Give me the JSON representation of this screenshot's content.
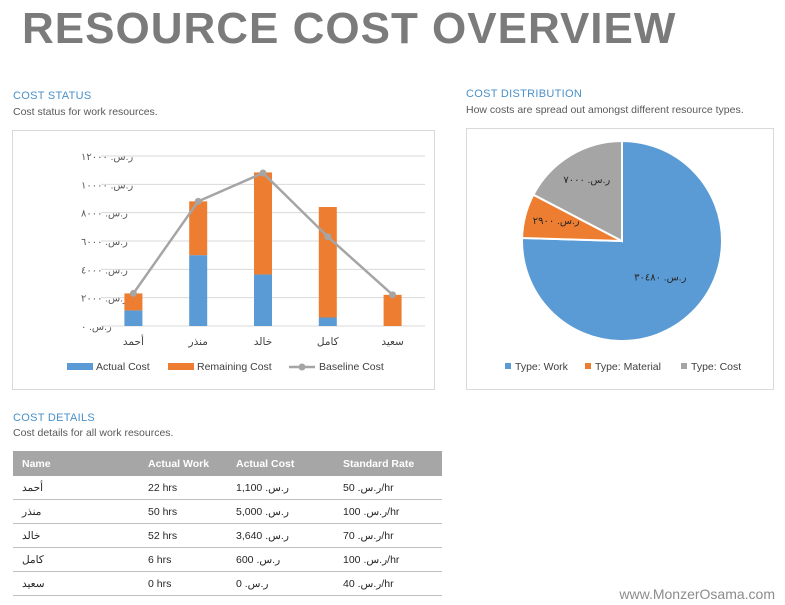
{
  "page": {
    "title": "RESOURCE COST OVERVIEW",
    "watermark": "www.MonzerOsama.com"
  },
  "colors": {
    "actual": "#5b9bd5",
    "remaining": "#ed7d31",
    "baseline": "#a5a5a5",
    "heading": "#4a90c8",
    "title": "#7b7b7b"
  },
  "cost_status": {
    "heading": "COST STATUS",
    "subtitle": "Cost status for work resources."
  },
  "cost_distribution": {
    "heading": "COST DISTRIBUTION",
    "subtitle": "How costs are spread out amongst different resource types."
  },
  "cost_details": {
    "heading": "COST DETAILS",
    "subtitle": "Cost details for all work resources.",
    "columns": [
      "Name",
      "Actual Work",
      "Actual Cost",
      "Standard Rate"
    ],
    "rows": [
      [
        "أحمد",
        "22 hrs",
        "ر.س. 1,100",
        "ر.س. 50/hr"
      ],
      [
        "منذر",
        "50 hrs",
        "ر.س. 5,000",
        "ر.س. 100/hr"
      ],
      [
        "خالد",
        "52 hrs",
        "ر.س. 3,640",
        "ر.س. 70/hr"
      ],
      [
        "كامل",
        "6 hrs",
        "ر.س. 600",
        "ر.س. 100/hr"
      ],
      [
        "سعيد",
        "0 hrs",
        "ر.س. 0",
        "ر.س. 40/hr"
      ]
    ]
  },
  "chart_data": [
    {
      "type": "bar",
      "stacked": true,
      "categories": [
        "أحمد",
        "منذر",
        "خالد",
        "كامل",
        "سعيد"
      ],
      "series": [
        {
          "name": "Actual Cost",
          "values": [
            1100,
            5000,
            3640,
            600,
            0
          ]
        },
        {
          "name": "Remaining Cost",
          "values": [
            1200,
            3800,
            7200,
            7800,
            2200
          ]
        }
      ],
      "line_series": {
        "name": "Baseline Cost",
        "values": [
          2300,
          8800,
          10800,
          6300,
          2200
        ]
      },
      "y_ticks": [
        "ر.س. ٠",
        "ر.س. ٢٠٠٠",
        "ر.س. ٤٠٠٠",
        "ر.س. ٦٠٠٠",
        "ر.س. ٨٠٠٠",
        "ر.س. ١٠٠٠٠",
        "ر.س. ١٢٠٠٠"
      ],
      "ylim": [
        0,
        12000
      ],
      "grid": true,
      "legend": "bottom"
    },
    {
      "type": "pie",
      "slices": [
        {
          "name": "Type: Work",
          "value": 30480,
          "label": "ر.س. ٣٠٤٨٠"
        },
        {
          "name": "Type: Material",
          "value": 2900,
          "label": "ر.س. ٢٩٠٠"
        },
        {
          "name": "Type: Cost",
          "value": 7000,
          "label": "ر.س. ٧٠٠٠"
        }
      ],
      "legend": "bottom"
    }
  ]
}
